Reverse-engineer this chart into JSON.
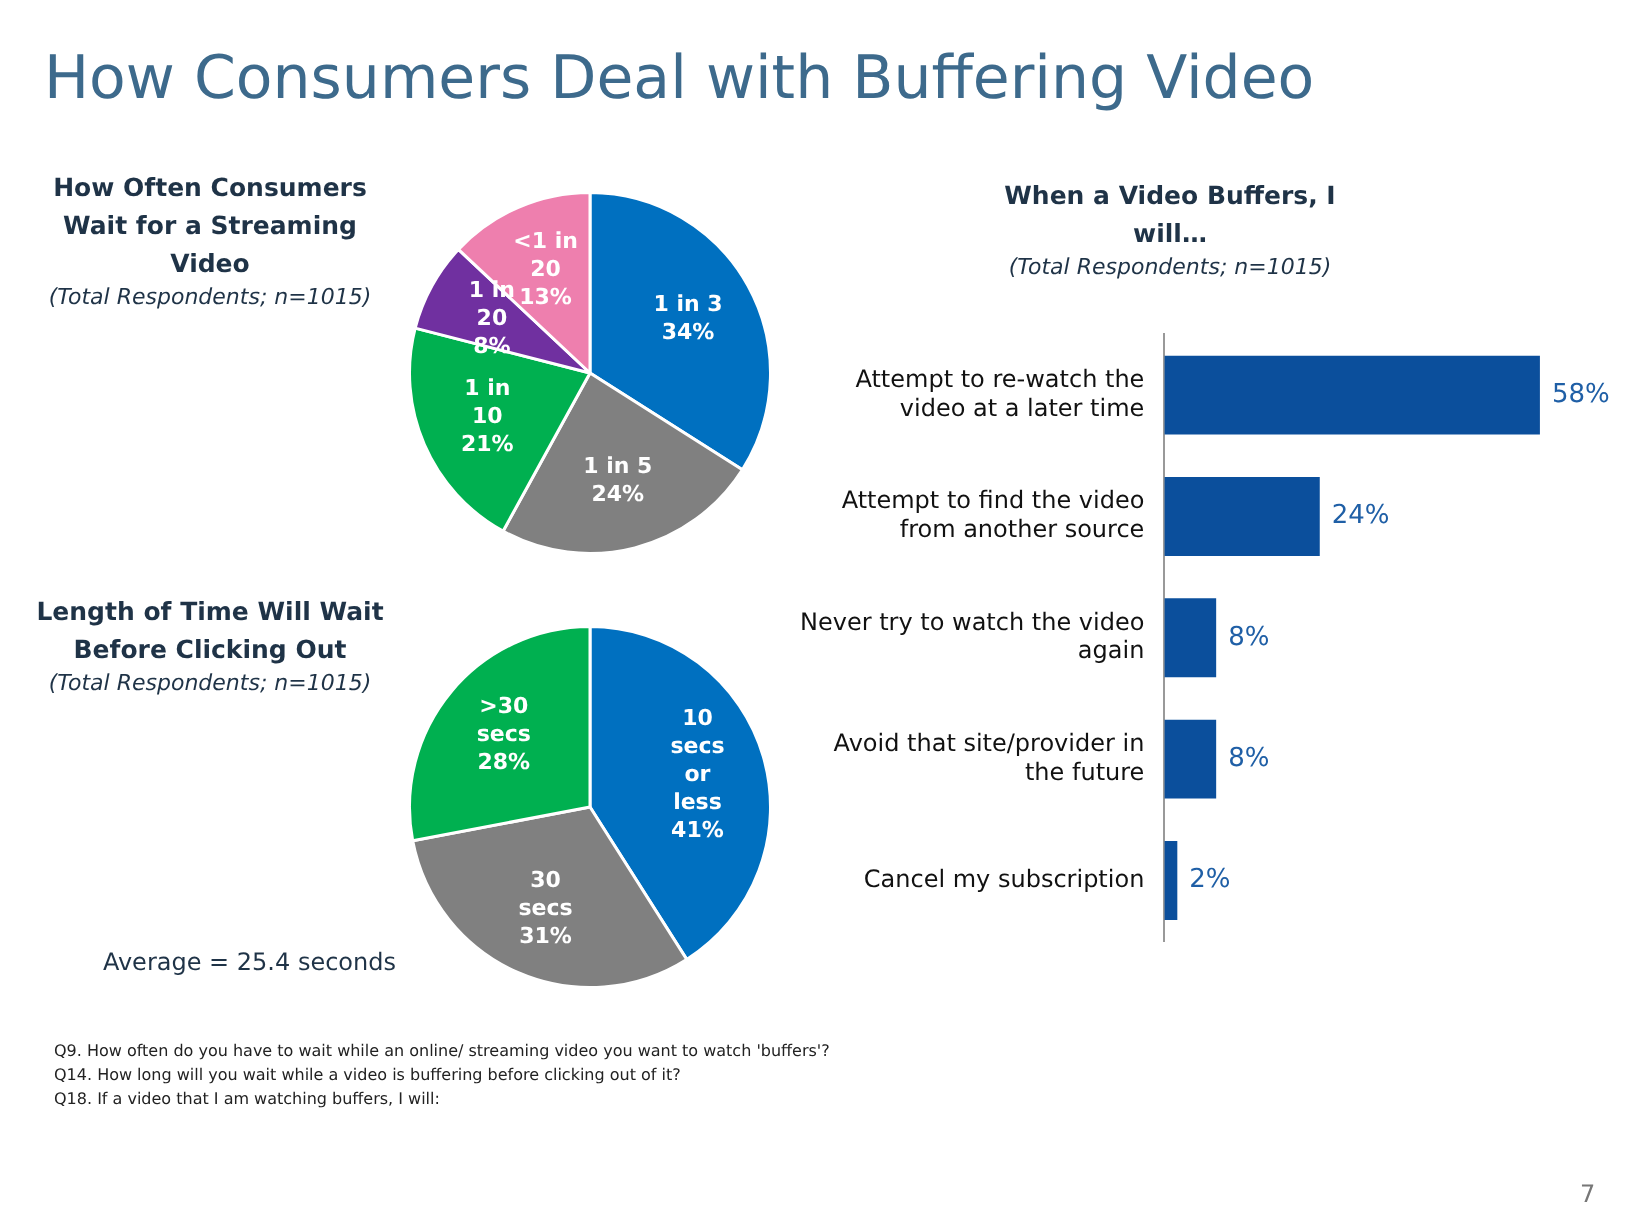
{
  "chart_data": [
    {
      "type": "other",
      "title": "How Consumers Deal with Buffering Video",
      "annotations": [
        "Q9. How often do you have to wait while an online/ streaming video you want to watch 'buffers'?",
        "Q14. How long will you wait while a video is buffering before clicking out of it?",
        "Q18. If a video that I am watching buffers, I will:",
        "7"
      ]
    },
    {
      "type": "pie",
      "title": "How Often Consumers Wait for a Streaming Video",
      "subtitle": "(Total Respondents; n=1015)",
      "categories": [
        "1 in 3",
        "1 in 5",
        "1 in 10",
        "1 in 20",
        "<1 in 20"
      ],
      "values": [
        34,
        24,
        21,
        8,
        13
      ],
      "colors": [
        "#0070c0",
        "#808080",
        "#00b050",
        "#7030a0",
        "#ee7fae"
      ],
      "value_labels": [
        "34%",
        "24%",
        "21%",
        "8%",
        "13%"
      ]
    },
    {
      "type": "pie",
      "title": "Length of Time Will Wait Before Clicking Out",
      "subtitle": "(Total Respondents; n=1015)",
      "categories": [
        "10 secs or less",
        "30 secs",
        ">30 secs"
      ],
      "values": [
        41,
        31,
        28
      ],
      "colors": [
        "#0070c0",
        "#808080",
        "#00b050"
      ],
      "value_labels": [
        "41%",
        "31%",
        "28%"
      ],
      "annotations": [
        "Average = 25.4 seconds"
      ]
    },
    {
      "type": "bar",
      "orientation": "horizontal",
      "title": "When a Video Buffers, I will…",
      "subtitle": "(Total Respondents; n=1015)",
      "categories": [
        "Attempt to re-watch the video at a later time",
        "Attempt to find the video from another source",
        "Never try to watch the video again",
        "Avoid that site/provider in the future",
        "Cancel my subscription"
      ],
      "values": [
        58,
        24,
        8,
        8,
        2
      ],
      "color": "#0b4f9c",
      "value_labels": [
        "58%",
        "24%",
        "8%",
        "8%",
        "2%"
      ],
      "tick_labels": "y"
    }
  ]
}
